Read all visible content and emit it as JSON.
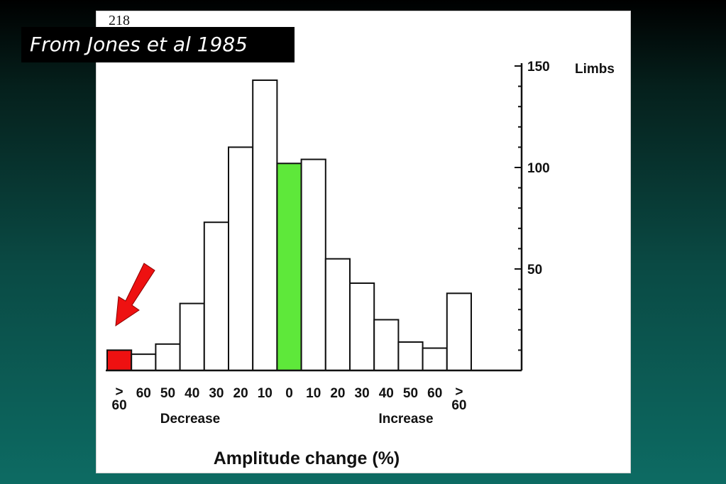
{
  "page_number": "218",
  "source_caption": "From Jones et al 1985",
  "colors": {
    "highlight_left": "#ee1111",
    "highlight_center": "#5ee83a",
    "arrow": "#ee1111",
    "bar_default": "#ffffff",
    "ink": "#111111"
  },
  "chart_data": {
    "type": "bar",
    "title": "",
    "xlabel": "Amplitude change (%)",
    "ylabel": "Limbs",
    "ylim": [
      0,
      150
    ],
    "yticks": [
      {
        "value": 50,
        "label": "50"
      },
      {
        "value": 100,
        "label": "100"
      },
      {
        "value": 150,
        "label": "150"
      }
    ],
    "categories": [
      ">60",
      "60",
      "50",
      "40",
      "30",
      "20",
      "10",
      "0",
      "10",
      "20",
      "30",
      "40",
      "50",
      "60",
      ">60"
    ],
    "values": [
      10,
      8,
      13,
      33,
      73,
      110,
      143,
      102,
      104,
      55,
      43,
      25,
      14,
      11,
      38
    ],
    "bar_colors": [
      "#ee1111",
      "#ffffff",
      "#ffffff",
      "#ffffff",
      "#ffffff",
      "#ffffff",
      "#ffffff",
      "#5ee83a",
      "#ffffff",
      "#ffffff",
      "#ffffff",
      "#ffffff",
      "#ffffff",
      "#ffffff",
      "#ffffff"
    ],
    "group_labels": {
      "left": "Decrease",
      "right": "Increase"
    },
    "arrow_annotation_target": ">60 Decrease"
  }
}
